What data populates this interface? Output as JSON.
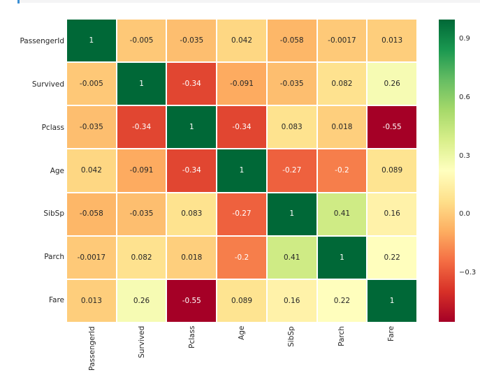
{
  "notebook": {
    "cell_indicator_color": "#3b8fd4",
    "top_strip_color": "#f4f4f5"
  },
  "chart_data": {
    "type": "heatmap",
    "title": "",
    "xlabel": "",
    "ylabel": "",
    "categories": [
      "PassengerId",
      "Survived",
      "Pclass",
      "Age",
      "SibSp",
      "Parch",
      "Fare"
    ],
    "matrix": [
      [
        1,
        -0.005,
        -0.035,
        0.042,
        -0.058,
        -0.0017,
        0.013
      ],
      [
        -0.005,
        1,
        -0.34,
        -0.091,
        -0.035,
        0.082,
        0.26
      ],
      [
        -0.035,
        -0.34,
        1,
        -0.34,
        0.083,
        0.018,
        -0.55
      ],
      [
        0.042,
        -0.091,
        -0.34,
        1,
        -0.27,
        -0.2,
        0.089
      ],
      [
        -0.058,
        -0.035,
        0.083,
        -0.27,
        1,
        0.41,
        0.16
      ],
      [
        -0.0017,
        0.082,
        0.018,
        -0.2,
        0.41,
        1,
        0.22
      ],
      [
        0.013,
        0.26,
        -0.55,
        0.089,
        0.16,
        0.22,
        1
      ]
    ],
    "vmin": -0.55,
    "vmax": 1.0,
    "colormap_name": "RdYlGn",
    "colormap_stops": [
      "#a50026",
      "#d73027",
      "#f46d43",
      "#fdae61",
      "#fee08b",
      "#ffffbf",
      "#d9ef8b",
      "#a6d96a",
      "#66bd63",
      "#1a9850",
      "#006837"
    ],
    "grid_line_color": "#ffffff",
    "annotation_color_dark": "#262626",
    "annotation_color_light": "#ffffff",
    "x_tick_rotation": 90,
    "colorbar": {
      "position": "right",
      "ticks": [
        {
          "label": "0.9",
          "value": 0.9
        },
        {
          "label": "0.6",
          "value": 0.6
        },
        {
          "label": "0.3",
          "value": 0.3
        },
        {
          "label": "0.0",
          "value": 0.0
        },
        {
          "label": "−0.3",
          "value": -0.3
        }
      ]
    }
  }
}
